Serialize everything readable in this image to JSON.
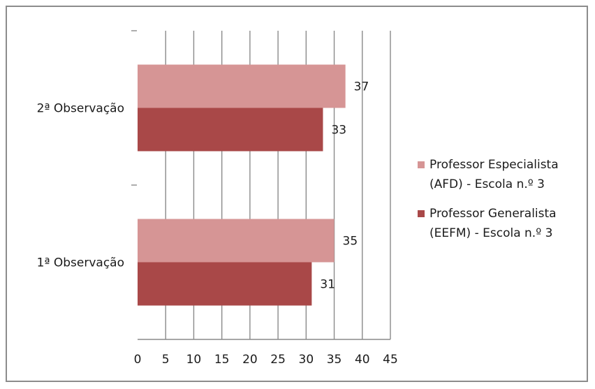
{
  "chart_data": {
    "type": "bar",
    "orientation": "horizontal",
    "categories": [
      "1ª Observação",
      "2ª Observação"
    ],
    "series": [
      {
        "name": "Professor Especialista\n(AFD) - Escola n.º 3",
        "values": [
          35,
          37
        ],
        "color": "#d69595"
      },
      {
        "name": "Professor Generalista\n(EEFM) - Escola n.º 3",
        "values": [
          31,
          33
        ],
        "color": "#a94848"
      }
    ],
    "xlim": [
      0,
      45
    ],
    "xticks": [
      0,
      5,
      10,
      15,
      20,
      25,
      30,
      35,
      40,
      45
    ],
    "grid": true,
    "legend_position": "right",
    "data_labels": true
  }
}
